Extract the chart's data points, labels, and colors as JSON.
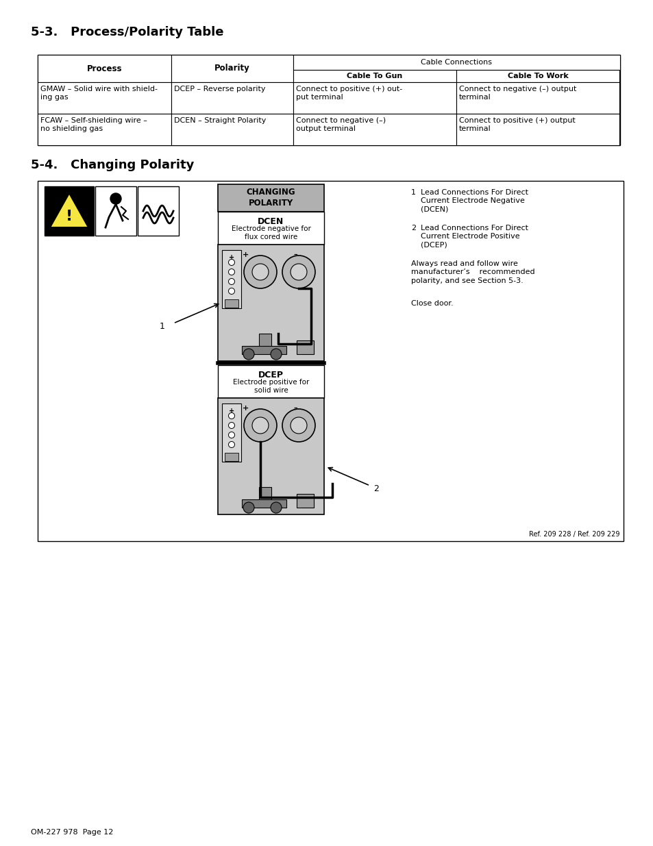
{
  "title_53": "5-3.   Process/Polarity Table",
  "title_54": "5-4.   Changing Polarity",
  "footer": "OM-227 978  Page 12",
  "ref_text": "Ref. 209 228 / Ref. 209 229",
  "table": {
    "rows": [
      {
        "process": "GMAW – Solid wire with shield-\ning gas",
        "polarity": "DCEP – Reverse polarity",
        "cable_gun": "Connect to positive (+) out-\nput terminal",
        "cable_work": "Connect to negative (–) output\nterminal"
      },
      {
        "process": "FCAW – Self-shielding wire –\nno shielding gas",
        "polarity": "DCEN – Straight Polarity",
        "cable_gun": "Connect to negative (–)\noutput terminal",
        "cable_work": "Connect to positive (+) output\nterminal"
      }
    ]
  },
  "section54": {
    "changing_polarity_header": "CHANGING\nPOLARITY",
    "dcen_title": "DCEN",
    "dcen_subtitle": "Electrode negative for\nflux cored wire",
    "dcep_title": "DCEP",
    "dcep_subtitle": "Electrode positive for\nsolid wire",
    "note1_text": "Lead Connections For Direct\nCurrent Electrode Negative\n(DCEN)",
    "note2_text": "Lead Connections For Direct\nCurrent Electrode Positive\n(DCEP)",
    "always_text": "Always read and follow wire\nmanufacturer’s    recommended\npolarity, and see Section 5-3.",
    "close_door": "Close door."
  },
  "bg_color": "#ffffff"
}
